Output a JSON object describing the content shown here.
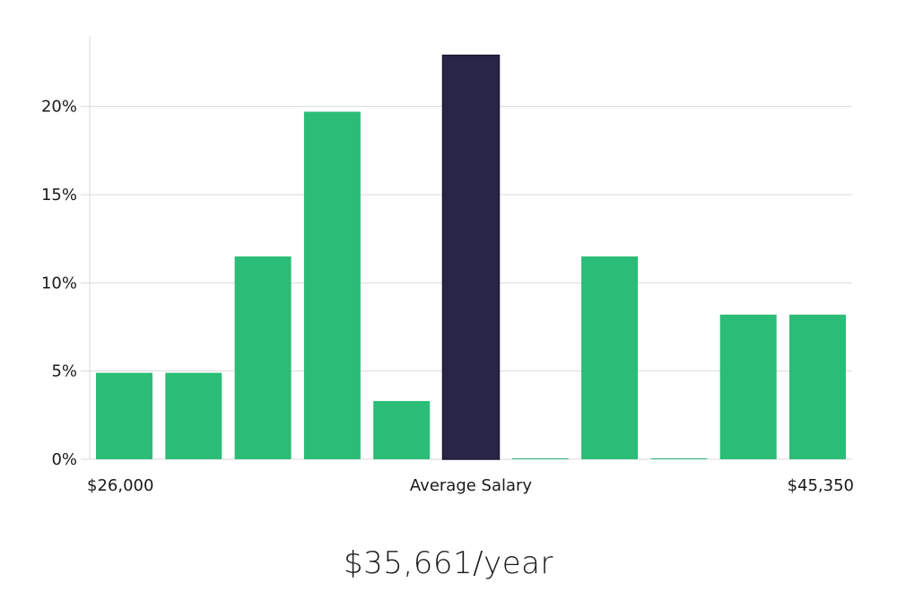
{
  "chart_data": {
    "type": "bar",
    "title": "",
    "xlabel": "Average Salary",
    "ylabel": "",
    "ylim": [
      0,
      24
    ],
    "y_ticks": [
      0,
      5,
      10,
      15,
      20
    ],
    "y_tick_labels": [
      "0%",
      "5%",
      "10%",
      "15%",
      "20%"
    ],
    "x_min_label": "$26,000",
    "x_max_label": "$45,350",
    "values": [
      4.9,
      4.9,
      11.5,
      19.7,
      3.3,
      22.9,
      0.05,
      11.5,
      0.05,
      8.2,
      8.2
    ],
    "highlight_index": 5,
    "colors": {
      "bar": "#2bbd77",
      "highlight": "#292546",
      "highlight_border": "#1a1733"
    },
    "grid": true
  },
  "summary": {
    "salary_text": "$35,661/year"
  }
}
